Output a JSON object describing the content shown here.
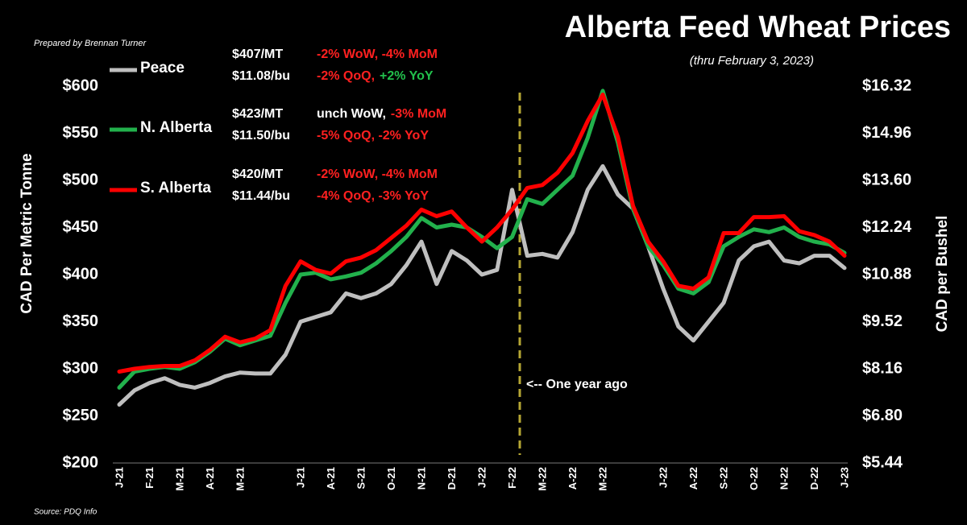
{
  "chart_data": {
    "type": "line",
    "title": "Alberta Feed Wheat Prices",
    "subtitle": "(thru February 3, 2023)",
    "credit": "Prepared by Brennan Turner",
    "source": "Source: PDQ Info",
    "annotation": "<-- One year ago",
    "ylabel": "CAD Per Metric Tonne",
    "y2label": "CAD per Bushel",
    "categories": [
      "J-21",
      null,
      "F-21",
      null,
      "M-21",
      null,
      "A-21",
      null,
      "M-21",
      null,
      null,
      null,
      "J-21",
      null,
      "A-21",
      null,
      "S-21",
      null,
      "O-21",
      null,
      "N-21",
      null,
      "D-21",
      null,
      "J-22",
      null,
      "F-22",
      null,
      "M-22",
      null,
      "A-22",
      null,
      "M-22",
      null,
      null,
      null,
      "J-22",
      null,
      "A-22",
      null,
      "S-22",
      null,
      "O-22",
      null,
      "N-22",
      null,
      "D-22",
      null,
      "J-23"
    ],
    "ylim": [
      200,
      600
    ],
    "yticks": [
      {
        "value": 200,
        "label": "$200"
      },
      {
        "value": 250,
        "label": "$250"
      },
      {
        "value": 300,
        "label": "$300"
      },
      {
        "value": 350,
        "label": "$350"
      },
      {
        "value": 400,
        "label": "$400"
      },
      {
        "value": 450,
        "label": "$450"
      },
      {
        "value": 500,
        "label": "$500"
      },
      {
        "value": 550,
        "label": "$550"
      },
      {
        "value": 600,
        "label": "$600"
      }
    ],
    "y2lim": [
      5.44,
      16.32
    ],
    "y2ticks": [
      {
        "value": 5.44,
        "label": "$5.44"
      },
      {
        "value": 6.8,
        "label": "$6.80"
      },
      {
        "value": 8.16,
        "label": "$8.16"
      },
      {
        "value": 9.52,
        "label": "$9.52"
      },
      {
        "value": 10.88,
        "label": "$10.88"
      },
      {
        "value": 12.24,
        "label": "$12.24"
      },
      {
        "value": 13.6,
        "label": "$13.60"
      },
      {
        "value": 14.96,
        "label": "$14.96"
      },
      {
        "value": 16.32,
        "label": "$16.32"
      }
    ],
    "series": [
      {
        "name": "Peace",
        "color": "#bfbfbf",
        "values": [
          262,
          277,
          285,
          290,
          283,
          280,
          285,
          292,
          296,
          295,
          295,
          315,
          350,
          355,
          360,
          380,
          375,
          380,
          390,
          410,
          435,
          390,
          425,
          415,
          400,
          405,
          490,
          420,
          422,
          418,
          445,
          490,
          515,
          485,
          470,
          430,
          385,
          345,
          330,
          350,
          370,
          415,
          430,
          435,
          415,
          412,
          420,
          420,
          407
        ],
        "notes": [
          [
            {
              "text": "$407/MT",
              "color": "#ffffff"
            },
            {
              "text": "-2% WoW, -4% MoM",
              "color": "#ff2020"
            }
          ],
          [
            {
              "text": "$11.08/bu",
              "color": "#ffffff"
            },
            {
              "text": "-2% QoQ,",
              "color": "#ff2020"
            },
            {
              "text": "+2% YoY",
              "color": "#22c04c"
            }
          ]
        ]
      },
      {
        "name": "N. Alberta",
        "color": "#22b14c",
        "values": [
          280,
          297,
          300,
          302,
          300,
          307,
          318,
          332,
          325,
          330,
          335,
          370,
          400,
          402,
          395,
          398,
          402,
          412,
          425,
          440,
          460,
          450,
          453,
          450,
          440,
          428,
          440,
          480,
          475,
          490,
          505,
          545,
          595,
          540,
          470,
          430,
          410,
          385,
          380,
          392,
          430,
          440,
          448,
          445,
          450,
          440,
          435,
          432,
          423
        ],
        "notes": [
          [
            {
              "text": "$423/MT",
              "color": "#ffffff"
            },
            {
              "text": "unch WoW,",
              "color": "#ffffff"
            },
            {
              "text": "-3% MoM",
              "color": "#ff2020"
            }
          ],
          [
            {
              "text": "$11.50/bu",
              "color": "#ffffff"
            },
            {
              "text": "-5% QoQ,  -2% YoY",
              "color": "#ff2020"
            }
          ]
        ]
      },
      {
        "name": "S. Alberta",
        "color": "#ff0000",
        "values": [
          297,
          300,
          302,
          303,
          303,
          309,
          320,
          334,
          328,
          332,
          341,
          388,
          414,
          405,
          401,
          414,
          418,
          426,
          439,
          452,
          469,
          462,
          467,
          450,
          435,
          450,
          469,
          492,
          495,
          508,
          529,
          563,
          591,
          546,
          473,
          435,
          414,
          388,
          385,
          397,
          444,
          444,
          461,
          461,
          462,
          446,
          442,
          435,
          420
        ],
        "notes": [
          [
            {
              "text": "$420/MT",
              "color": "#ffffff"
            },
            {
              "text": "-2% WoW, -4% MoM",
              "color": "#ff2020"
            }
          ],
          [
            {
              "text": "$11.44/bu",
              "color": "#ffffff"
            },
            {
              "text": "-4% QoQ, -3% YoY",
              "color": "#ff2020"
            }
          ]
        ]
      }
    ]
  }
}
